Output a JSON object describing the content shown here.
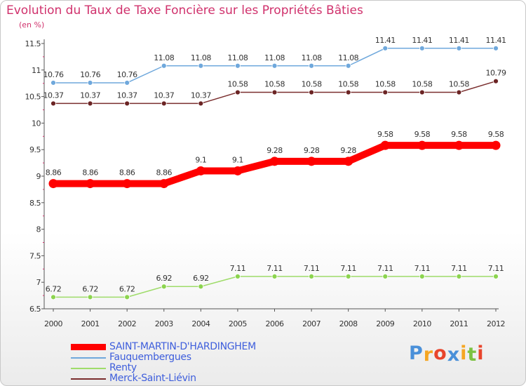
{
  "title": "Evolution du Taux de Taxe Foncière sur les Propriétés Bâties",
  "unit": "(en %)",
  "logo": {
    "letters": [
      "P",
      "r",
      "o",
      "x",
      "i",
      "t",
      "i"
    ],
    "colors": [
      "#4a90d9",
      "#f5a623",
      "#e8452c",
      "#4a90d9",
      "#f5a623",
      "#7cc242",
      "#e8452c"
    ]
  },
  "chart_data": {
    "type": "line",
    "title": "Evolution du Taux de Taxe Foncière sur les Propriétés Bâties",
    "ylabel": "(en %)",
    "x": [
      "2000",
      "2001",
      "2002",
      "2003",
      "2004",
      "2005",
      "2006",
      "2007",
      "2008",
      "2009",
      "2010",
      "2011",
      "2012"
    ],
    "ylim": [
      6.5,
      11.5
    ],
    "yticks": [
      "6.5",
      "7",
      "7.5",
      "8",
      "8.5",
      "9",
      "9.5",
      "10",
      "10.5",
      "11",
      "11.5"
    ],
    "grid": false,
    "legend_position": "bottom-left",
    "series": [
      {
        "name": "SAINT-MARTIN-D'HARDINGHEM",
        "color": "#ff0000",
        "values": [
          8.86,
          8.86,
          8.86,
          8.86,
          9.1,
          9.1,
          9.28,
          9.28,
          9.28,
          9.58,
          9.58,
          9.58,
          9.58
        ],
        "labels": [
          "8.86",
          "8.86",
          "8.86",
          "8.86",
          "9.1",
          "9.1",
          "9.28",
          "9.28",
          "9.28",
          "9.58",
          "9.58",
          "9.58",
          "9.58"
        ]
      },
      {
        "name": "Fauquembergues",
        "color": "#6fa8dc",
        "values": [
          10.76,
          10.76,
          10.76,
          11.08,
          11.08,
          11.08,
          11.08,
          11.08,
          11.08,
          11.41,
          11.41,
          11.41,
          11.41
        ],
        "labels": [
          "10.76",
          "10.76",
          "10.76",
          "11.08",
          "11.08",
          "11.08",
          "11.08",
          "11.08",
          "11.08",
          "11.41",
          "11.41",
          "11.41",
          "11.41"
        ]
      },
      {
        "name": "Renty",
        "color": "#9fdc6a",
        "values": [
          6.72,
          6.72,
          6.72,
          6.92,
          6.92,
          7.11,
          7.11,
          7.11,
          7.11,
          7.11,
          7.11,
          7.11,
          7.11
        ],
        "labels": [
          "6.72",
          "6.72",
          "6.72",
          "6.92",
          "6.92",
          "7.11",
          "7.11",
          "7.11",
          "7.11",
          "7.11",
          "7.11",
          "7.11",
          "7.11"
        ]
      },
      {
        "name": "Merck-Saint-Liévin",
        "color": "#7a2e2e",
        "values": [
          10.37,
          10.37,
          10.37,
          10.37,
          10.37,
          10.58,
          10.58,
          10.58,
          10.58,
          10.58,
          10.58,
          10.58,
          10.79
        ],
        "labels": [
          "10.37",
          "10.37",
          "10.37",
          "10.37",
          "10.37",
          "10.58",
          "10.58",
          "10.58",
          "10.58",
          "10.58",
          "10.58",
          "10.58",
          "10.79"
        ]
      }
    ]
  }
}
